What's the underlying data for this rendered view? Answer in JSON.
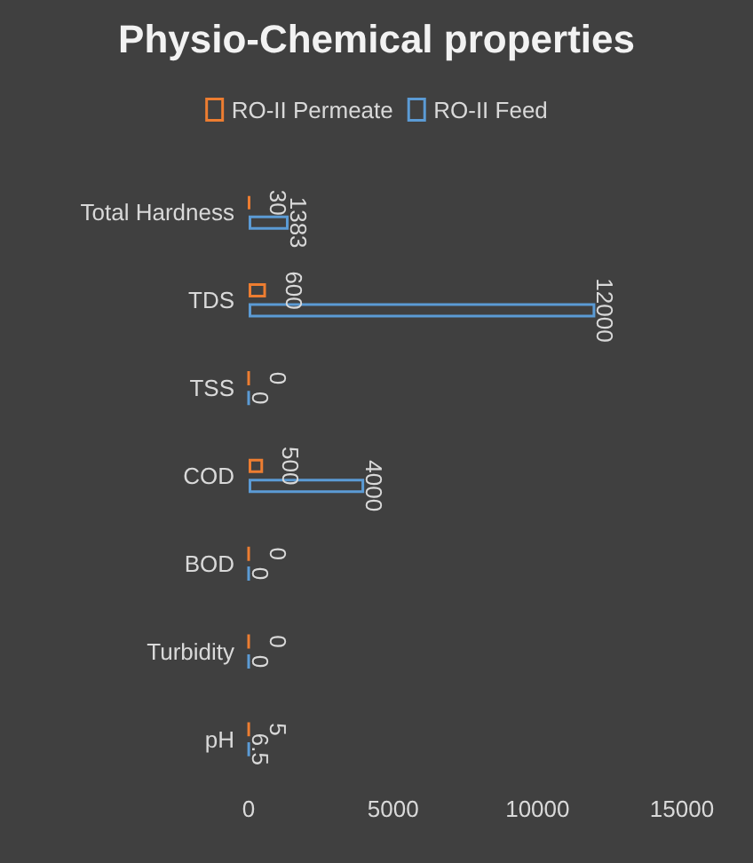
{
  "chart_data": {
    "type": "bar",
    "orientation": "horizontal",
    "title": "Physio-Chemical properties",
    "categories": [
      "Total Hardness",
      "TDS",
      "TSS",
      "COD",
      "BOD",
      "Turbidity",
      "pH"
    ],
    "series": [
      {
        "name": "RO-II Permeate",
        "color": "#ed7d31",
        "values": [
          30,
          600,
          0,
          500,
          0,
          0,
          5
        ]
      },
      {
        "name": "RO-II Feed",
        "color": "#5b9bd5",
        "values": [
          1383,
          12000,
          0,
          4000,
          0,
          0,
          6.5
        ]
      }
    ],
    "xlim": [
      0,
      15000
    ],
    "xticks": [
      0,
      {
        "value": 5000,
        "label": "5000"
      },
      {
        "value": 10000,
        "label": "10000"
      },
      {
        "value": 15000,
        "label": "15000"
      }
    ],
    "data_labels": true,
    "legend": "top",
    "grid": false
  }
}
